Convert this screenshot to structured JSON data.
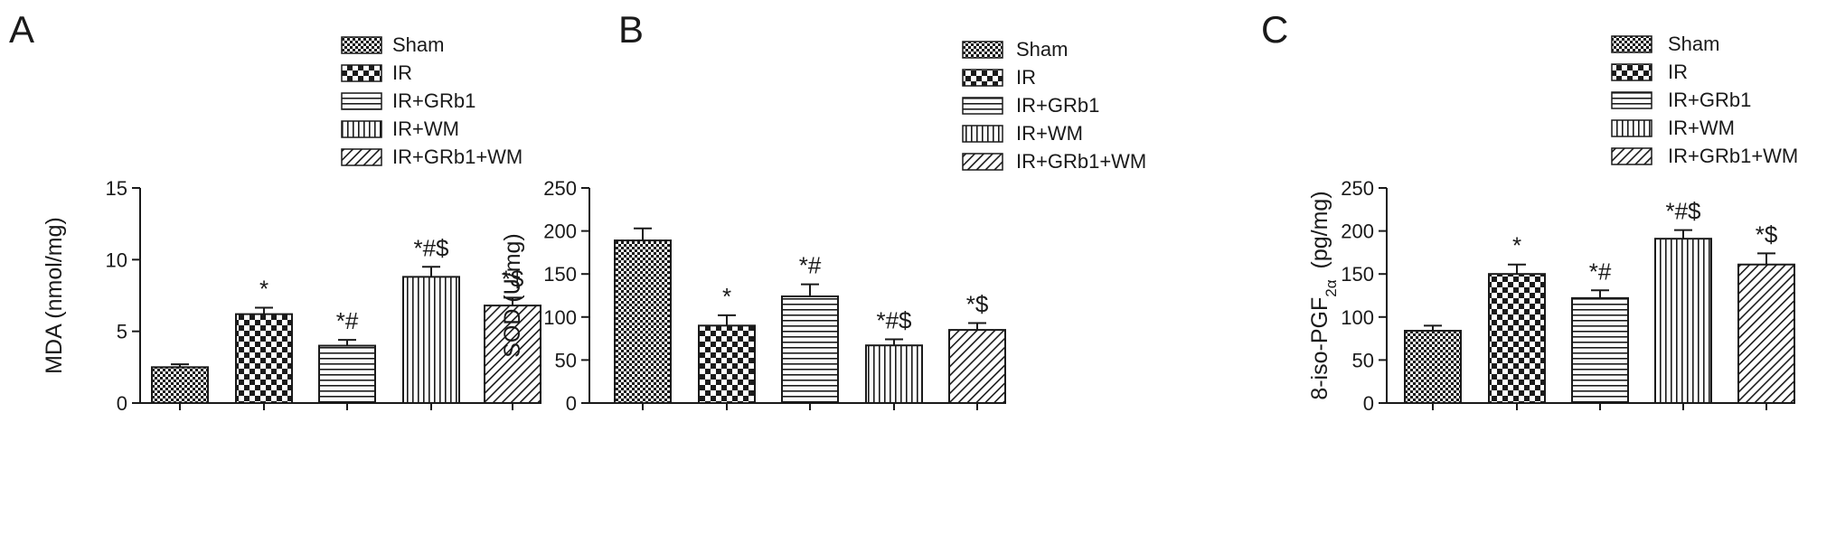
{
  "figure": {
    "legend": [
      "Sham",
      "IR",
      "IR+GRb1",
      "IR+WM",
      "IR+GRb1+WM"
    ]
  },
  "chart_data": [
    {
      "type": "bar",
      "panel": "A",
      "categories": [
        "Sham",
        "IR",
        "IR+GRb1",
        "IR+WM",
        "IR+GRb1+WM"
      ],
      "values": [
        2.5,
        6.2,
        4.0,
        8.8,
        6.8
      ],
      "errors": [
        0.2,
        0.45,
        0.4,
        0.7,
        0.55
      ],
      "annotations": [
        "",
        "*",
        "*#",
        "*#$",
        "*$"
      ],
      "ylabel": "MDA (nmol/mg)",
      "ylabel_sub": "",
      "ylabel_tail": "",
      "ylim": [
        0,
        15
      ],
      "yticks": [
        0,
        5,
        10,
        15
      ],
      "ytick_labels": [
        "0",
        "5",
        "10",
        "15"
      ]
    },
    {
      "type": "bar",
      "panel": "B",
      "categories": [
        "Sham",
        "IR",
        "IR+GRb1",
        "IR+WM",
        "IR+GRb1+WM"
      ],
      "values": [
        189,
        90,
        124,
        67,
        85
      ],
      "errors": [
        14,
        12,
        14,
        7,
        8
      ],
      "annotations": [
        "",
        "*",
        "*#",
        "*#$",
        "*$"
      ],
      "ylabel": "SOD (U/mg)",
      "ylabel_sub": "",
      "ylabel_tail": "",
      "ylim": [
        0,
        250
      ],
      "yticks": [
        0,
        50,
        100,
        150,
        200,
        250
      ],
      "ytick_labels": [
        "0",
        "50",
        "100",
        "150",
        "200",
        "250"
      ]
    },
    {
      "type": "bar",
      "panel": "C",
      "categories": [
        "Sham",
        "IR",
        "IR+GRb1",
        "IR+WM",
        "IR+GRb1+WM"
      ],
      "values": [
        84,
        150,
        122,
        191,
        161
      ],
      "errors": [
        6,
        11,
        9,
        10,
        13
      ],
      "annotations": [
        "",
        "*",
        "*#",
        "*#$",
        "*$"
      ],
      "ylabel": "8-iso-PGF",
      "ylabel_sub": "2α",
      "ylabel_tail": "(pg/mg)",
      "ylim": [
        0,
        250
      ],
      "yticks": [
        0,
        50,
        100,
        150,
        200,
        250
      ],
      "ytick_labels": [
        "0",
        "50",
        "100",
        "150",
        "200",
        "250"
      ]
    }
  ],
  "style": {
    "bar_fill": "#ffffff",
    "stroke": "#1a1a1a",
    "patterns": [
      "small-check",
      "large-check",
      "horizontal",
      "vertical",
      "diagonal"
    ]
  }
}
